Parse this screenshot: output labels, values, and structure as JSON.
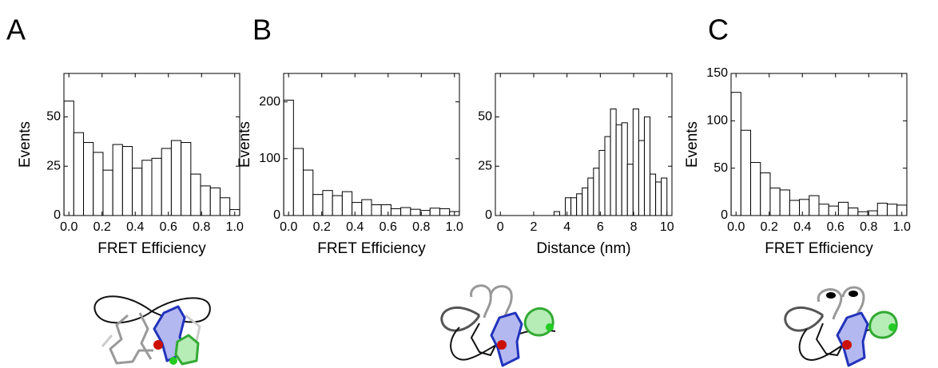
{
  "panel_labels": [
    "A",
    "B",
    "C"
  ],
  "chart_data": [
    {
      "type": "histogram",
      "xlabel": "FRET Efficiency",
      "ylabel": "Events",
      "color": "#ffffff",
      "bins": [
        -0.0294,
        0.0294,
        0.0882,
        0.1471,
        0.2059,
        0.2647,
        0.3235,
        0.3824,
        0.4412,
        0.5,
        0.5588,
        0.6176,
        0.6765,
        0.7353,
        0.7941,
        0.8529,
        0.9118,
        0.9706,
        1.0294
      ],
      "values": [
        58,
        42,
        37,
        32,
        23,
        36,
        35,
        24,
        28,
        29,
        34,
        38,
        37,
        21,
        15,
        14,
        9,
        3
      ],
      "xlim": [
        -0.03,
        1.03
      ],
      "ylim": [
        0,
        72
      ],
      "xticks": [
        {
          "value": 0,
          "label": "0.0"
        },
        {
          "value": 0.2,
          "label": "0.2"
        },
        {
          "value": 0.4,
          "label": "0.4"
        },
        {
          "value": 0.6,
          "label": "0.6"
        },
        {
          "value": 0.8,
          "label": "0.8"
        },
        {
          "value": 1,
          "label": "1.0"
        }
      ],
      "yticks": [
        0,
        25,
        50
      ]
    },
    {
      "type": "histogram",
      "xlabel": "FRET Efficiency",
      "ylabel": "Events",
      "color": "#ffffff",
      "bins": [
        -0.0294,
        0.0294,
        0.0882,
        0.1471,
        0.2059,
        0.2647,
        0.3235,
        0.3824,
        0.4412,
        0.5,
        0.5588,
        0.6176,
        0.6765,
        0.7353,
        0.7941,
        0.8529,
        0.9118,
        0.9706,
        1.0294
      ],
      "values": [
        203,
        118,
        80,
        37,
        44,
        35,
        42,
        23,
        28,
        19,
        19,
        12,
        14,
        11,
        9,
        13,
        12,
        7
      ],
      "xlim": [
        -0.03,
        1.03
      ],
      "ylim": [
        0,
        250
      ],
      "xticks": [
        {
          "value": 0,
          "label": "0.0"
        },
        {
          "value": 0.2,
          "label": "0.2"
        },
        {
          "value": 0.4,
          "label": "0.4"
        },
        {
          "value": 0.6,
          "label": "0.6"
        },
        {
          "value": 0.8,
          "label": "0.8"
        },
        {
          "value": 1,
          "label": "1.0"
        }
      ],
      "yticks": [
        0,
        100,
        200
      ]
    },
    {
      "type": "histogram",
      "xlabel": "Distance (nm)",
      "color": "#ffffff",
      "bins": [
        3.22,
        3.559,
        3.898,
        4.237,
        4.576,
        4.915,
        5.254,
        5.593,
        5.932,
        6.271,
        6.61,
        6.949,
        7.288,
        7.627,
        7.966,
        8.305,
        8.644,
        8.983,
        9.322,
        9.661,
        10.0
      ],
      "values": [
        2,
        0,
        9,
        9,
        11,
        14,
        19,
        24,
        33,
        40,
        54,
        46,
        47,
        26,
        54,
        38,
        50,
        21,
        17,
        19
      ],
      "xlim": [
        -0.3,
        10.3
      ],
      "ylim": [
        0,
        72
      ],
      "xticks": [
        0,
        2,
        4,
        6,
        8,
        10
      ],
      "yticks": [
        0,
        25,
        50
      ]
    },
    {
      "type": "histogram",
      "xlabel": "FRET Efficiency",
      "ylabel": "Events",
      "color": "#ffffff",
      "bins": [
        -0.0294,
        0.0294,
        0.0882,
        0.1471,
        0.2059,
        0.2647,
        0.3235,
        0.3824,
        0.4412,
        0.5,
        0.5588,
        0.6176,
        0.6765,
        0.7353,
        0.7941,
        0.8529,
        0.9118,
        0.9706,
        1.0294
      ],
      "values": [
        130,
        90,
        56,
        45,
        29,
        27,
        16,
        17,
        21,
        12,
        10,
        14,
        8,
        4,
        5,
        13,
        12,
        11
      ],
      "xlim": [
        -0.03,
        1.03
      ],
      "ylim": [
        0,
        150
      ],
      "xticks": [
        {
          "value": 0,
          "label": "0.0"
        },
        {
          "value": 0.2,
          "label": "0.2"
        },
        {
          "value": 0.4,
          "label": "0.4"
        },
        {
          "value": 0.6,
          "label": "0.6"
        },
        {
          "value": 0.8,
          "label": "0.8"
        },
        {
          "value": 1,
          "label": "1.0"
        }
      ],
      "yticks": [
        0,
        50,
        100,
        150
      ]
    }
  ]
}
